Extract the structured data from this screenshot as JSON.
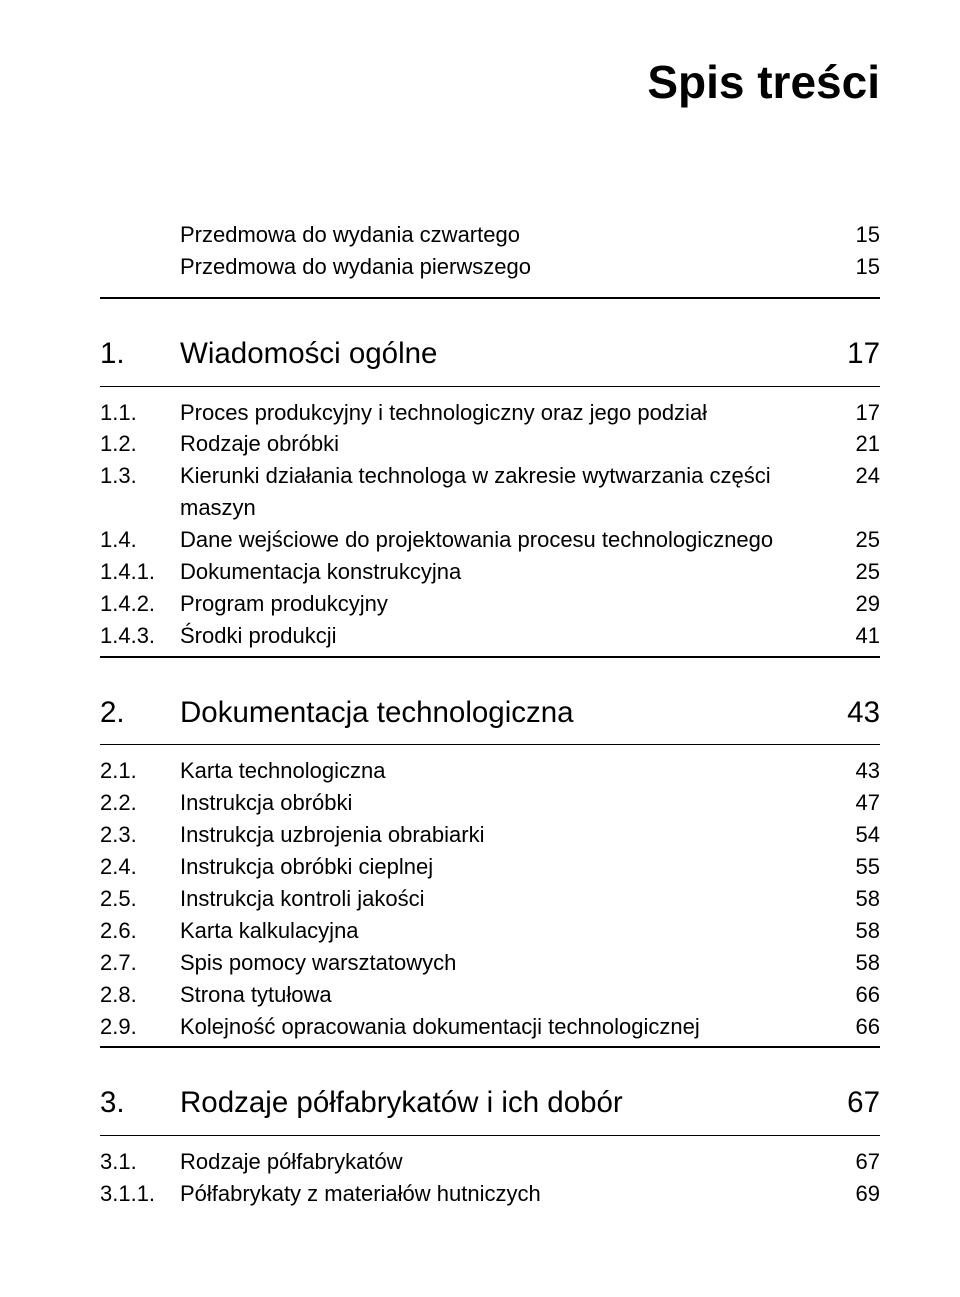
{
  "title": "Spis treści",
  "frontmatter": [
    {
      "label": "Przedmowa do wydania czwartego",
      "page": "15"
    },
    {
      "label": "Przedmowa do wydania pierwszego",
      "page": "15"
    }
  ],
  "chapters": [
    {
      "num": "1.",
      "label": "Wiadomości ogólne",
      "page": "17",
      "items": [
        {
          "num": "1.1.",
          "label": "Proces produkcyjny i technologiczny oraz jego podział",
          "page": "17"
        },
        {
          "num": "1.2.",
          "label": "Rodzaje obróbki",
          "page": "21"
        },
        {
          "num": "1.3.",
          "label": "Kierunki działania technologa w zakresie wytwarzania części maszyn",
          "page": "24"
        },
        {
          "num": "1.4.",
          "label": "Dane wejściowe do projektowania procesu technologicznego",
          "page": "25"
        },
        {
          "num": "1.4.1.",
          "label": "Dokumentacja konstrukcyjna",
          "page": "25"
        },
        {
          "num": "1.4.2.",
          "label": "Program produkcyjny",
          "page": "29"
        },
        {
          "num": "1.4.3.",
          "label": "Środki produkcji",
          "page": "41"
        }
      ]
    },
    {
      "num": "2.",
      "label": "Dokumentacja technologiczna",
      "page": "43",
      "items": [
        {
          "num": "2.1.",
          "label": "Karta technologiczna",
          "page": "43"
        },
        {
          "num": "2.2.",
          "label": "Instrukcja obróbki",
          "page": "47"
        },
        {
          "num": "2.3.",
          "label": "Instrukcja uzbrojenia obrabiarki",
          "page": "54"
        },
        {
          "num": "2.4.",
          "label": "Instrukcja obróbki cieplnej",
          "page": "55"
        },
        {
          "num": "2.5.",
          "label": "Instrukcja kontroli jakości",
          "page": "58"
        },
        {
          "num": "2.6.",
          "label": "Karta kalkulacyjna",
          "page": "58"
        },
        {
          "num": "2.7.",
          "label": "Spis pomocy warsztatowych",
          "page": "58"
        },
        {
          "num": "2.8.",
          "label": "Strona tytułowa",
          "page": "66"
        },
        {
          "num": "2.9.",
          "label": "Kolejność opracowania dokumentacji technologicznej",
          "page": "66"
        }
      ]
    },
    {
      "num": "3.",
      "label": "Rodzaje półfabrykatów i ich dobór",
      "page": "67",
      "items": [
        {
          "num": "3.1.",
          "label": "Rodzaje półfabrykatów",
          "page": "67"
        },
        {
          "num": "3.1.1.",
          "label": "Półfabrykaty z materiałów hutniczych",
          "page": "69"
        }
      ]
    }
  ]
}
